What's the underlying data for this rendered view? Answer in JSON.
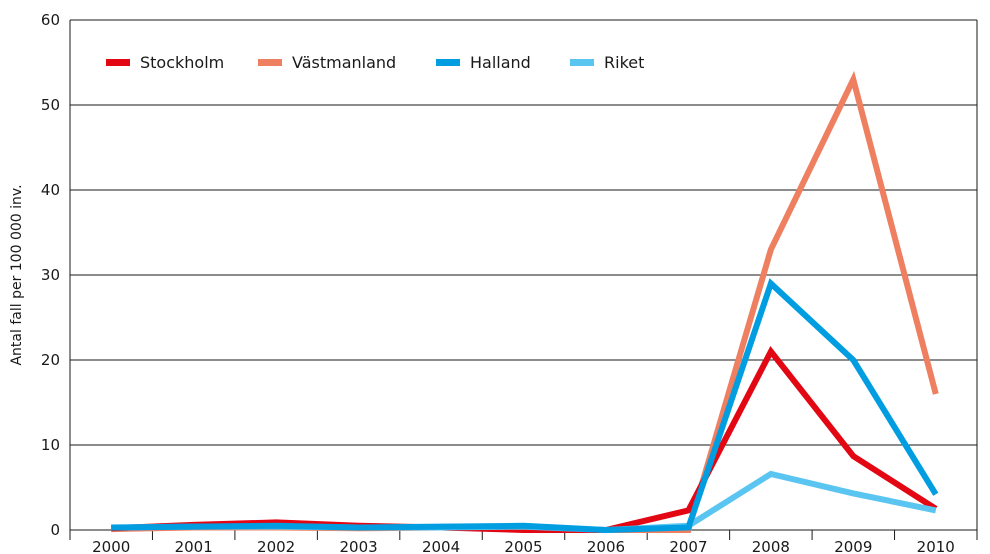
{
  "chart_data": {
    "type": "line",
    "title": "",
    "xlabel": "",
    "ylabel": "Antal fall per 100 000 inv.",
    "ylim": [
      0,
      60
    ],
    "yticks": [
      "0",
      "10",
      "20",
      "30",
      "40",
      "50",
      "60"
    ],
    "categories": [
      "2000",
      "2001",
      "2002",
      "2003",
      "2004",
      "2005",
      "2006",
      "2007",
      "2008",
      "2009",
      "2010"
    ],
    "grid": "horizontal",
    "legend_position": "top-left",
    "series": [
      {
        "name": "Stockholm",
        "color": "#e30613",
        "values": [
          0.2,
          0.6,
          0.9,
          0.5,
          0.3,
          0.0,
          0.0,
          2.3,
          21.0,
          8.7,
          2.5
        ]
      },
      {
        "name": "Västmanland",
        "color": "#ee7f60",
        "values": [
          0.1,
          0.3,
          0.3,
          0.2,
          0.3,
          0.2,
          0.0,
          0.0,
          33.0,
          53.0,
          16.0
        ]
      },
      {
        "name": "Halland",
        "color": "#009ee0",
        "values": [
          0.3,
          0.4,
          0.5,
          0.3,
          0.4,
          0.5,
          0.0,
          0.3,
          29.0,
          20.0,
          4.2
        ]
      },
      {
        "name": "Riket",
        "color": "#5bc5f2",
        "values": [
          0.3,
          0.4,
          0.4,
          0.3,
          0.3,
          0.4,
          0.0,
          0.5,
          6.6,
          4.3,
          2.3
        ]
      }
    ]
  }
}
